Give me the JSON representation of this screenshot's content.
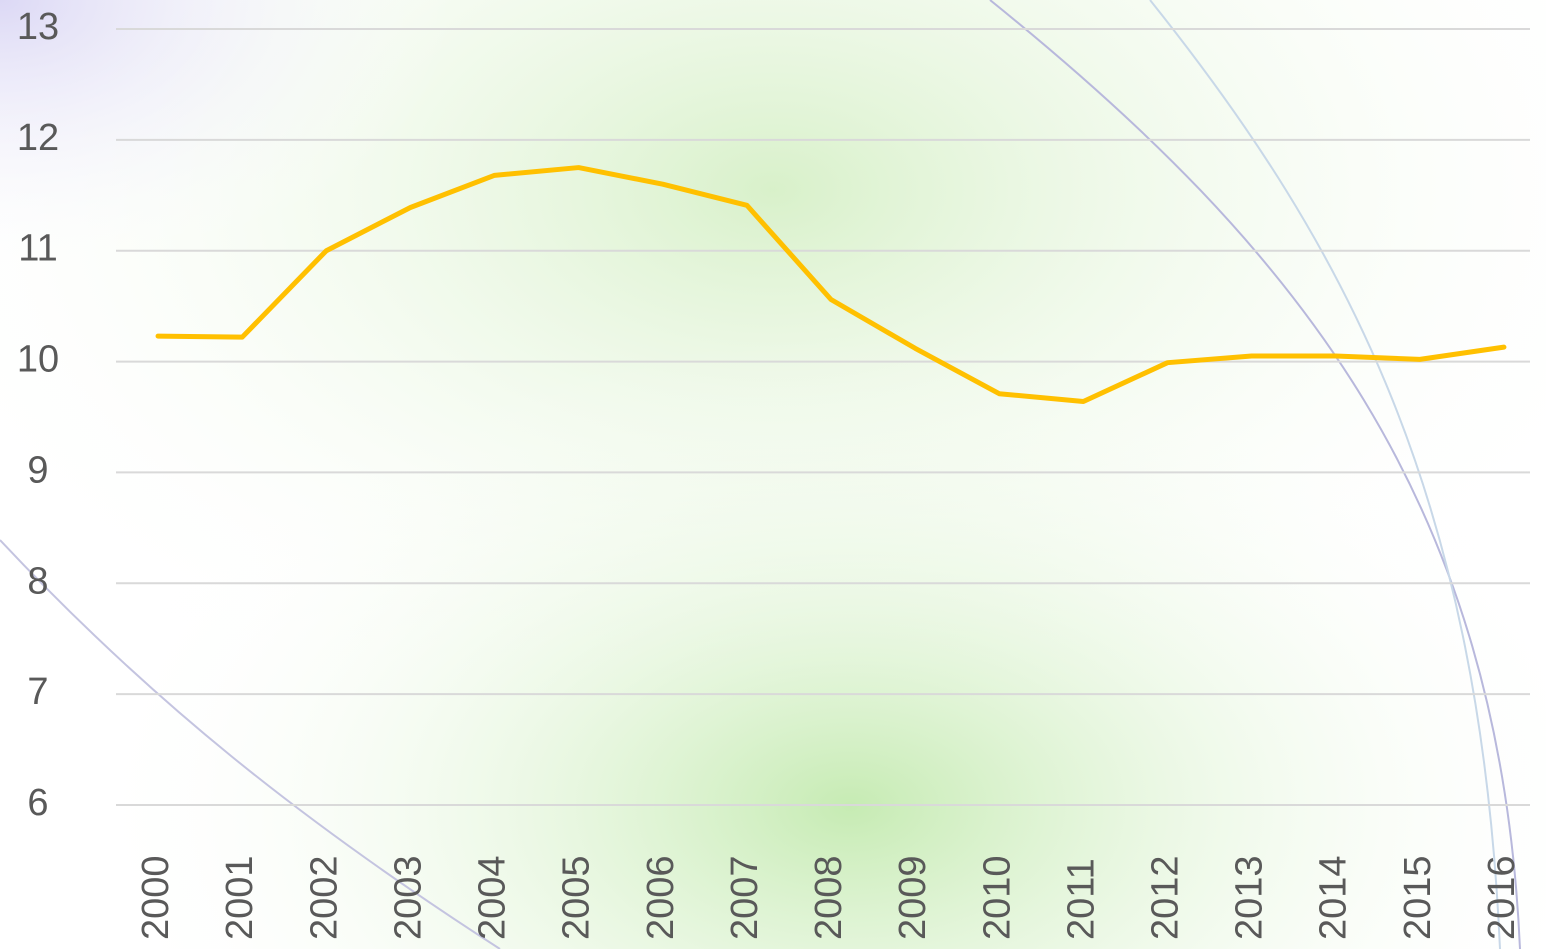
{
  "chart_data": {
    "type": "line",
    "categories": [
      "2000",
      "2001",
      "2002",
      "2003",
      "2004",
      "2005",
      "2006",
      "2007",
      "2008",
      "2009",
      "2010",
      "2011",
      "2012",
      "2013",
      "2014",
      "2015",
      "2016"
    ],
    "series": [
      {
        "color": "#ffc000",
        "values": [
          10.23,
          10.22,
          11.0,
          11.39,
          11.68,
          11.75,
          11.6,
          11.41,
          10.56,
          10.12,
          9.71,
          9.64,
          9.99,
          10.05,
          10.05,
          10.02,
          10.13
        ]
      }
    ],
    "ylim": [
      6,
      13
    ],
    "yticks": [
      6,
      7,
      8,
      9,
      10,
      11,
      12,
      13
    ],
    "grid": true
  }
}
